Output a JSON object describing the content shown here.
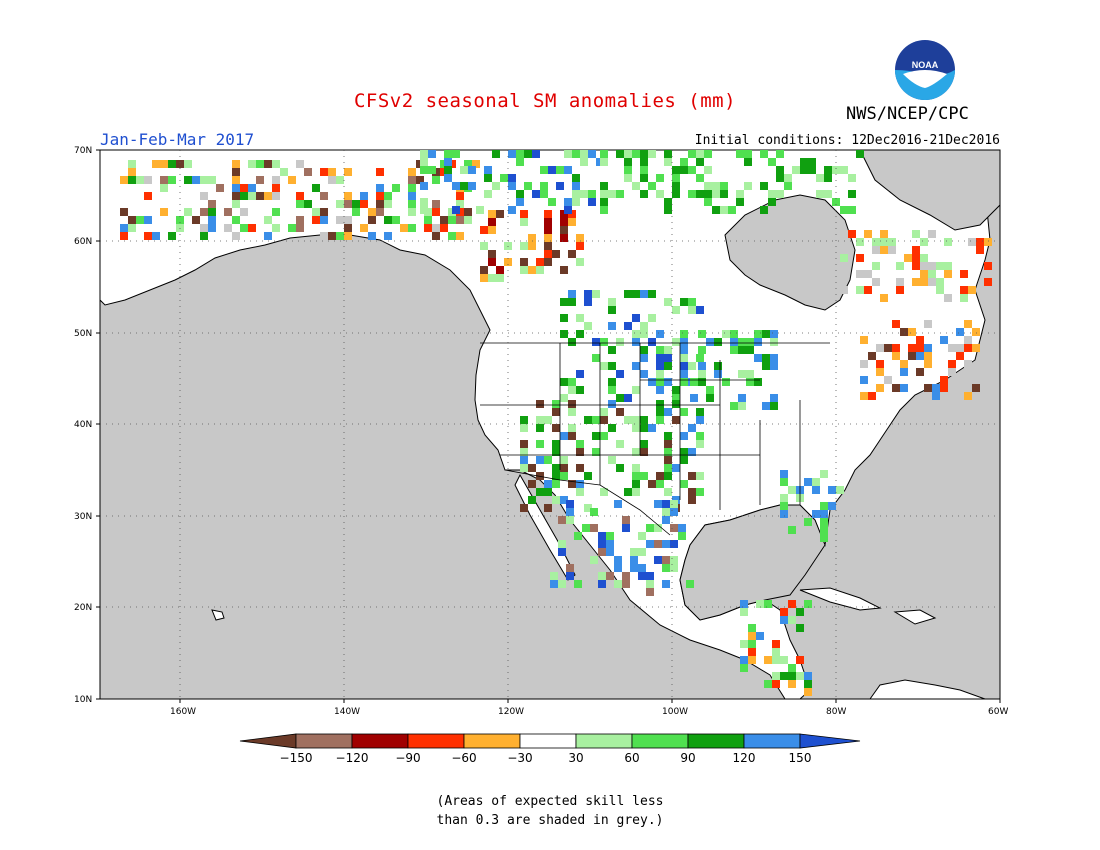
{
  "title": "CFSv2 seasonal SM anomalies (mm)",
  "agency": "NWS/NCEP/CPC",
  "logo_text": "NOAA",
  "period": "Jan-Feb-Mar 2017",
  "initial_conditions": "Initial conditions: 12Dec2016-21Dec2016",
  "map": {
    "region": "North America",
    "lat_labels": [
      "70N",
      "60N",
      "50N",
      "40N",
      "30N",
      "20N",
      "10N"
    ],
    "lon_labels": [
      "160W",
      "140W",
      "120W",
      "100W",
      "80W",
      "60W"
    ],
    "lon_range": [
      -172,
      -60
    ],
    "lat_range": [
      10,
      70
    ],
    "grid": true,
    "land_color": "#ffffff",
    "ocean_color": "#c8c8c8"
  },
  "legend": {
    "ticks": [
      "-150",
      "-120",
      "-90",
      "-60",
      "-30",
      "30",
      "60",
      "90",
      "120",
      "150"
    ],
    "colors": [
      "#6b3a28",
      "#a07060",
      "#a00000",
      "#ff3000",
      "#ffb030",
      "#ffffff",
      "#a8f0a0",
      "#50e050",
      "#10a010",
      "#3a8ee8",
      "#1e50d0"
    ]
  },
  "note": {
    "line1": "(Areas of expected skill less",
    "line2": "than 0.3 are shaded in grey.)"
  }
}
